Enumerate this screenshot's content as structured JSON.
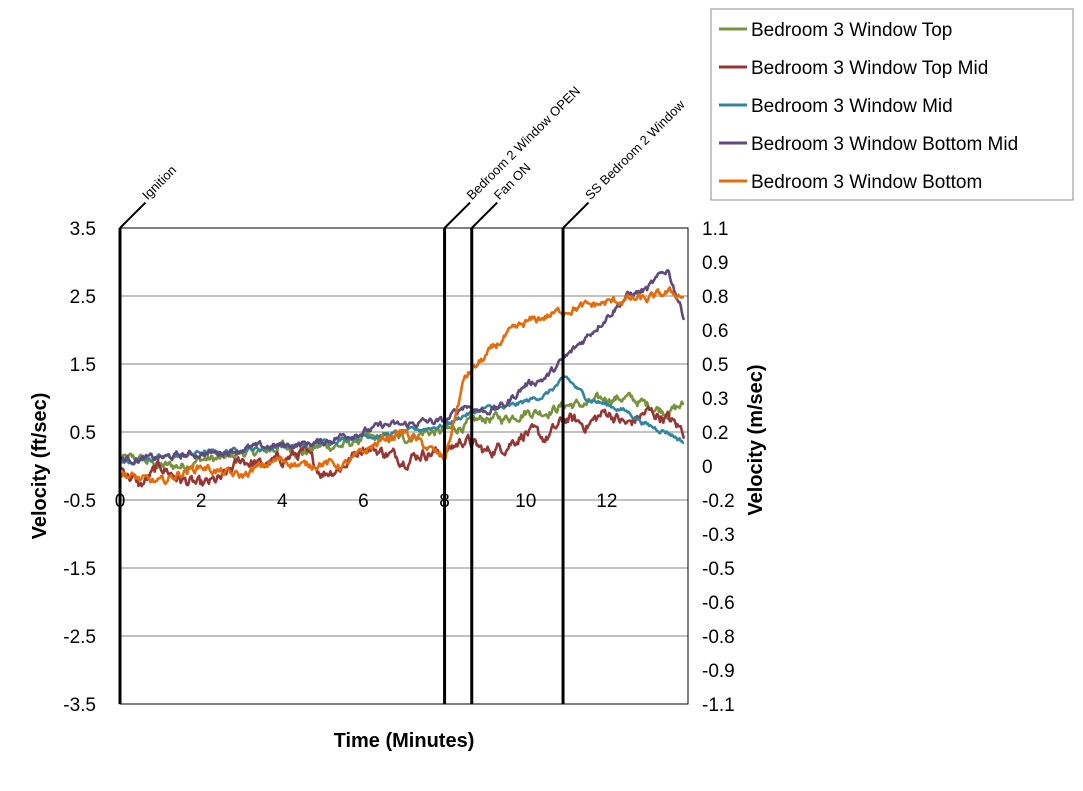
{
  "chart_data": {
    "type": "line",
    "title": "",
    "xlabel": "Time (Minutes)",
    "ylabel_left": "Velocity (ft/sec)",
    "ylabel_right": "Velocity (m/sec)",
    "xlim": [
      0,
      14
    ],
    "ylim_left": [
      -3.5,
      3.5
    ],
    "ylim_right": [
      -1.1,
      1.1
    ],
    "x_ticks": [
      "0",
      "2",
      "4",
      "6",
      "8",
      "10",
      "12"
    ],
    "y_left_ticks": [
      "3.5",
      "2.5",
      "1.5",
      "0.5",
      "-0.5",
      "-1.5",
      "-2.5",
      "-3.5"
    ],
    "y_right_ticks": [
      "1.1",
      "0.9",
      "0.8",
      "0.6",
      "0.5",
      "0.3",
      "0.2",
      "0",
      "-0.2",
      "-0.3",
      "-0.5",
      "-0.6",
      "-0.8",
      "-0.9",
      "-1.1"
    ],
    "grid": "horizontal",
    "legend_position": "top-right",
    "events": [
      {
        "label": "Ignition",
        "x": 0.0
      },
      {
        "label": "Bedroom 2 Window OPEN",
        "x": 8.0
      },
      {
        "label": "Fan ON",
        "x": 8.67
      },
      {
        "label": "SS Bedroom 2 Window",
        "x": 10.92
      }
    ],
    "series": [
      {
        "name": "Bedroom 3 Window Top",
        "color": "#77933c",
        "x": [
          0,
          0.5,
          1,
          1.5,
          2,
          2.5,
          3,
          3.5,
          4,
          4.5,
          5,
          5.5,
          6,
          6.5,
          7,
          7.5,
          8,
          8.5,
          9,
          9.5,
          10,
          10.5,
          11,
          11.5,
          12,
          12.5,
          13,
          13.5,
          13.9
        ],
        "y": [
          0.1,
          0.1,
          0.0,
          0.0,
          0.1,
          0.1,
          0.2,
          0.2,
          0.3,
          0.2,
          0.3,
          0.3,
          0.4,
          0.4,
          0.4,
          0.5,
          0.5,
          0.6,
          0.7,
          0.7,
          0.8,
          0.8,
          0.9,
          0.9,
          1.0,
          1.0,
          0.9,
          0.8,
          0.9
        ]
      },
      {
        "name": "Bedroom 3 Window Top Mid",
        "color": "#953735",
        "x": [
          0,
          0.5,
          1,
          1.5,
          2,
          2.5,
          3,
          3.5,
          4,
          4.5,
          5,
          5.5,
          6,
          6.5,
          7,
          7.5,
          8,
          8.5,
          9,
          9.5,
          10,
          10.5,
          11,
          11.5,
          12,
          12.5,
          13,
          13.5,
          13.9
        ],
        "y": [
          0.0,
          -0.3,
          0.0,
          -0.2,
          -0.3,
          -0.2,
          0.1,
          0.0,
          0.1,
          0.2,
          -0.1,
          0.0,
          0.3,
          0.2,
          0.1,
          0.2,
          0.2,
          0.4,
          0.2,
          0.3,
          0.5,
          0.4,
          0.7,
          0.6,
          0.8,
          0.6,
          0.8,
          0.7,
          0.5
        ]
      },
      {
        "name": "Bedroom 3 Window Mid",
        "color": "#31859c",
        "x": [
          0,
          0.5,
          1,
          1.5,
          2,
          2.5,
          3,
          3.5,
          4,
          4.5,
          5,
          5.5,
          6,
          6.5,
          7,
          7.5,
          8,
          8.5,
          9,
          9.5,
          10,
          10.5,
          11,
          11.5,
          12,
          12.5,
          13,
          13.5,
          13.9
        ],
        "y": [
          0.05,
          0.1,
          0.12,
          0.15,
          0.2,
          0.2,
          0.25,
          0.25,
          0.3,
          0.3,
          0.35,
          0.4,
          0.45,
          0.45,
          0.5,
          0.55,
          0.6,
          0.75,
          0.85,
          0.85,
          0.95,
          1.05,
          1.3,
          1.0,
          0.9,
          0.8,
          0.6,
          0.5,
          0.35
        ]
      },
      {
        "name": "Bedroom 3 Window Bottom Mid",
        "color": "#604a7b",
        "x": [
          0,
          0.5,
          1,
          1.5,
          2,
          2.5,
          3,
          3.5,
          4,
          4.5,
          5,
          5.5,
          6,
          6.5,
          7,
          7.5,
          8,
          8.5,
          9,
          9.5,
          10,
          10.5,
          11,
          11.5,
          12,
          12.5,
          13,
          13.5,
          13.9
        ],
        "y": [
          0.1,
          0.1,
          0.12,
          0.15,
          0.18,
          0.2,
          0.25,
          0.28,
          0.3,
          0.32,
          0.35,
          0.45,
          0.5,
          0.6,
          0.6,
          0.65,
          0.65,
          0.9,
          0.8,
          0.9,
          1.2,
          1.3,
          1.6,
          1.9,
          2.2,
          2.5,
          2.6,
          2.9,
          2.2
        ]
      },
      {
        "name": "Bedroom 3 Window Bottom",
        "color": "#e46c0a",
        "x": [
          0,
          0.5,
          1,
          1.5,
          2,
          2.5,
          3,
          3.5,
          4,
          4.5,
          5,
          5.5,
          6,
          6.5,
          7,
          7.5,
          8,
          8.25,
          8.5,
          9,
          9.5,
          10,
          10.5,
          11,
          11.5,
          12,
          12.5,
          13,
          13.5,
          13.9
        ],
        "y": [
          -0.1,
          -0.2,
          -0.25,
          -0.1,
          0.0,
          -0.1,
          -0.15,
          0.0,
          0.1,
          0.0,
          0.05,
          0.0,
          0.2,
          0.4,
          0.5,
          0.3,
          0.1,
          0.7,
          1.3,
          1.6,
          1.9,
          2.1,
          2.2,
          2.3,
          2.35,
          2.4,
          2.45,
          2.45,
          2.55,
          2.5
        ]
      }
    ]
  }
}
